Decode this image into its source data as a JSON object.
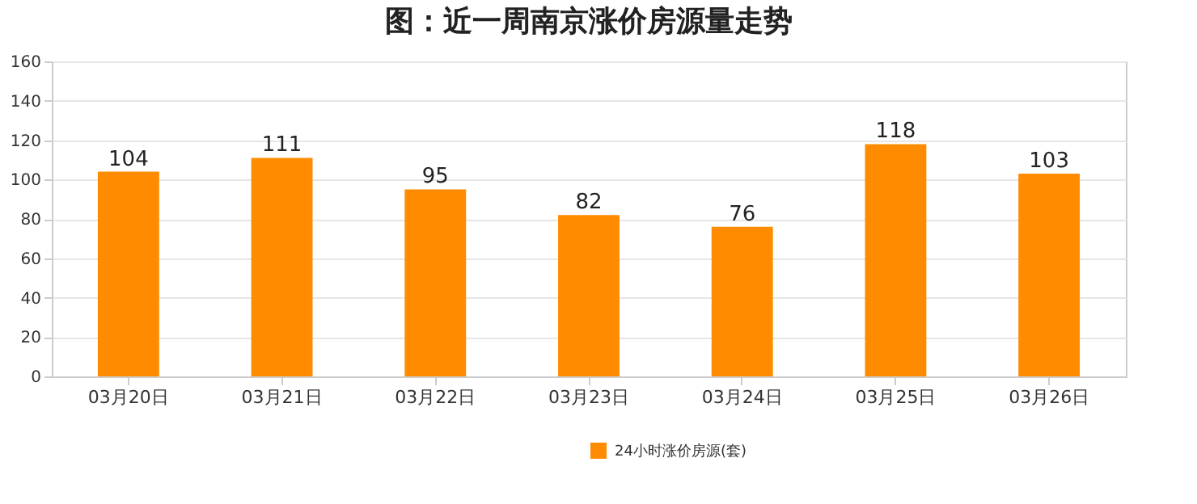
{
  "chart_data": {
    "type": "bar",
    "title": "图：近一周南京涨价房源量走势",
    "categories": [
      "03月20日",
      "03月21日",
      "03月22日",
      "03月23日",
      "03月24日",
      "03月25日",
      "03月26日"
    ],
    "series": [
      {
        "name": "24小时涨价房源(套)",
        "color": "#ff8c00",
        "values": [
          104,
          111,
          95,
          82,
          76,
          118,
          103
        ]
      }
    ],
    "ylim": [
      0,
      160
    ],
    "yticks": [
      0,
      20,
      40,
      60,
      80,
      100,
      120,
      140,
      160
    ],
    "grid": "y",
    "legend": "bottom",
    "data_labels": true
  }
}
